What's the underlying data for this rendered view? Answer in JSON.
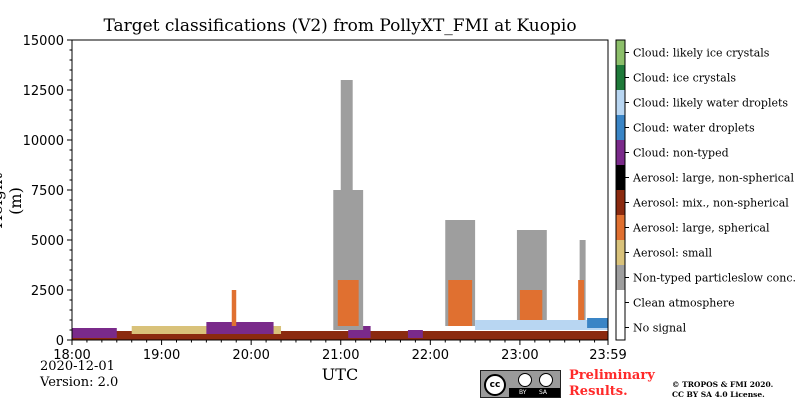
{
  "chart_data": {
    "type": "heatmap",
    "title": "Target classifications (V2) from PollyXT_FMI at Kuopio",
    "xlabel": "UTC",
    "ylabel": "Height (m)",
    "xlim": [
      "18:00",
      "23:59"
    ],
    "ylim": [
      0,
      15000
    ],
    "x_tick_labels": [
      "18:00",
      "19:00",
      "20:00",
      "21:00",
      "22:00",
      "23:00",
      "23:59"
    ],
    "y_tick_labels": [
      "0",
      "2500",
      "5000",
      "7500",
      "10000",
      "12500",
      "15000"
    ],
    "y_ticks": [
      0,
      2500,
      5000,
      7500,
      10000,
      12500,
      15000
    ],
    "legend_position": "right colorbar",
    "classes": [
      {
        "label": "No signal",
        "color": "#ffffff"
      },
      {
        "label": "Clean atmosphere",
        "color": "#ffffff"
      },
      {
        "label": "Non-typed particleslow conc.",
        "color": "#9e9e9e"
      },
      {
        "label": "Aerosol: small",
        "color": "#d9c27a"
      },
      {
        "label": "Aerosol: large, spherical",
        "color": "#e07030"
      },
      {
        "label": "Aerosol: mix., non-spherical",
        "color": "#8b2a0f"
      },
      {
        "label": "Aerosol: large, non-spherical",
        "color": "#000000"
      },
      {
        "label": "Cloud: non-typed",
        "color": "#7a2a8a"
      },
      {
        "label": "Cloud: water droplets",
        "color": "#3a85c6"
      },
      {
        "label": "Cloud: likely water droplets",
        "color": "#b8d6f2"
      },
      {
        "label": "Cloud: ice crystals",
        "color": "#1f7a3a"
      },
      {
        "label": "Cloud: likely ice crystals",
        "color": "#8cbf6a"
      }
    ],
    "regions": [
      {
        "class": "Aerosol: mix., non-spherical",
        "x0": "18:00",
        "x1": "23:59",
        "y0": 0,
        "y1": 450
      },
      {
        "class": "Aerosol: small",
        "x0": "18:40",
        "x1": "20:20",
        "y0": 300,
        "y1": 700
      },
      {
        "class": "Cloud: non-typed",
        "x0": "18:00",
        "x1": "18:30",
        "y0": 100,
        "y1": 600
      },
      {
        "class": "Cloud: non-typed",
        "x0": "19:30",
        "x1": "20:15",
        "y0": 300,
        "y1": 900
      },
      {
        "class": "Cloud: non-typed",
        "x0": "21:05",
        "x1": "21:20",
        "y0": 100,
        "y1": 700
      },
      {
        "class": "Cloud: non-typed",
        "x0": "21:45",
        "x1": "21:55",
        "y0": 100,
        "y1": 500
      },
      {
        "class": "Aerosol: large, spherical",
        "x0": "19:47",
        "x1": "19:50",
        "y0": 700,
        "y1": 2500
      },
      {
        "class": "Non-typed particleslow conc.",
        "x0": "20:55",
        "x1": "21:15",
        "y0": 500,
        "y1": 7500
      },
      {
        "class": "Non-typed particleslow conc.",
        "x0": "21:00",
        "x1": "21:08",
        "y0": 7500,
        "y1": 13000
      },
      {
        "class": "Aerosol: large, spherical",
        "x0": "20:58",
        "x1": "21:12",
        "y0": 700,
        "y1": 3000
      },
      {
        "class": "Non-typed particleslow conc.",
        "x0": "22:10",
        "x1": "22:30",
        "y0": 700,
        "y1": 6000
      },
      {
        "class": "Aerosol: large, spherical",
        "x0": "22:12",
        "x1": "22:28",
        "y0": 700,
        "y1": 3000
      },
      {
        "class": "Non-typed particleslow conc.",
        "x0": "22:58",
        "x1": "23:18",
        "y0": 700,
        "y1": 5500
      },
      {
        "class": "Aerosol: large, spherical",
        "x0": "23:00",
        "x1": "23:15",
        "y0": 700,
        "y1": 2500
      },
      {
        "class": "Non-typed particleslow conc.",
        "x0": "23:40",
        "x1": "23:44",
        "y0": 700,
        "y1": 5000
      },
      {
        "class": "Aerosol: large, spherical",
        "x0": "23:39",
        "x1": "23:43",
        "y0": 700,
        "y1": 3000
      },
      {
        "class": "Cloud: likely water droplets",
        "x0": "22:30",
        "x1": "23:59",
        "y0": 500,
        "y1": 1000
      },
      {
        "class": "Cloud: water droplets",
        "x0": "23:45",
        "x1": "23:59",
        "y0": 600,
        "y1": 1100
      }
    ]
  },
  "footer": {
    "date": "2020-12-01",
    "version": "Version: 2.0",
    "license_logo_text": "cc",
    "license_by": "BY",
    "license_sa": "SA",
    "preliminary_line1": "Preliminary",
    "preliminary_line2": "Results.",
    "copyright_line1": "© TROPOS & FMI 2020.",
    "copyright_line2": "CC BY SA 4.0 License."
  }
}
